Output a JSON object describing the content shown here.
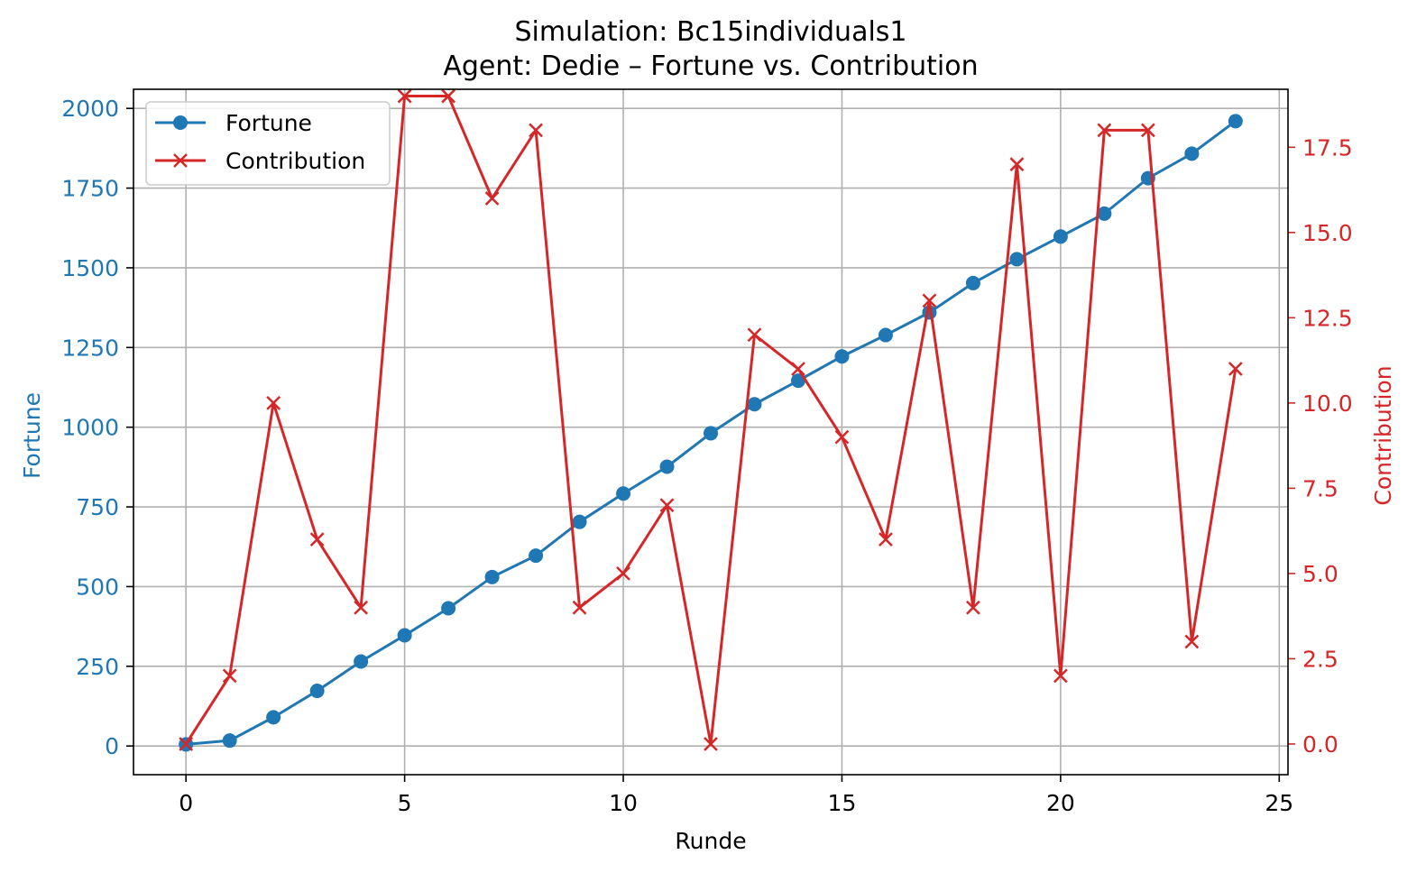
{
  "chart_data": {
    "type": "line",
    "title": "Simulation: Bc15individuals1",
    "subtitle": "Agent: Dedie – Fortune vs. Contribution",
    "xlabel": "Runde",
    "ylabel_left": "Fortune",
    "ylabel_right": "Contribution",
    "xlim": [
      -1.2,
      25.2
    ],
    "ylim_left": [
      -90,
      2060
    ],
    "ylim_right": [
      -0.9,
      19.2
    ],
    "x_ticks": [
      0,
      5,
      10,
      15,
      20,
      25
    ],
    "y_left_ticks": [
      0,
      250,
      500,
      750,
      1000,
      1250,
      1500,
      1750,
      2000
    ],
    "y_right_ticks": [
      "0.0",
      "2.5",
      "5.0",
      "7.5",
      "10.0",
      "12.5",
      "15.0",
      "17.5"
    ],
    "grid": true,
    "legend_position": "top-left",
    "colors": {
      "fortune": "#1f77b4",
      "contribution": "#d62728",
      "grid": "#b0b0b0",
      "axes": "#000000"
    },
    "x": [
      0,
      1,
      2,
      3,
      4,
      5,
      6,
      7,
      8,
      9,
      10,
      11,
      12,
      13,
      14,
      15,
      16,
      17,
      18,
      19,
      20,
      21,
      22,
      23,
      24
    ],
    "series": [
      {
        "name": "Fortune",
        "axis": "left",
        "marker": "circle",
        "values": [
          5,
          17,
          90,
          173,
          265,
          347,
          432,
          530,
          597,
          703,
          792,
          876,
          981,
          1072,
          1146,
          1222,
          1289,
          1360,
          1452,
          1527,
          1598,
          1670,
          1781,
          1858,
          1960
        ]
      },
      {
        "name": "Contribution",
        "axis": "right",
        "marker": "x",
        "values": [
          0,
          2,
          10,
          6,
          4,
          19,
          19,
          16,
          18,
          4,
          5,
          7,
          0,
          12,
          11,
          9,
          6,
          13,
          4,
          17,
          2,
          18,
          18,
          3,
          11
        ]
      }
    ]
  }
}
